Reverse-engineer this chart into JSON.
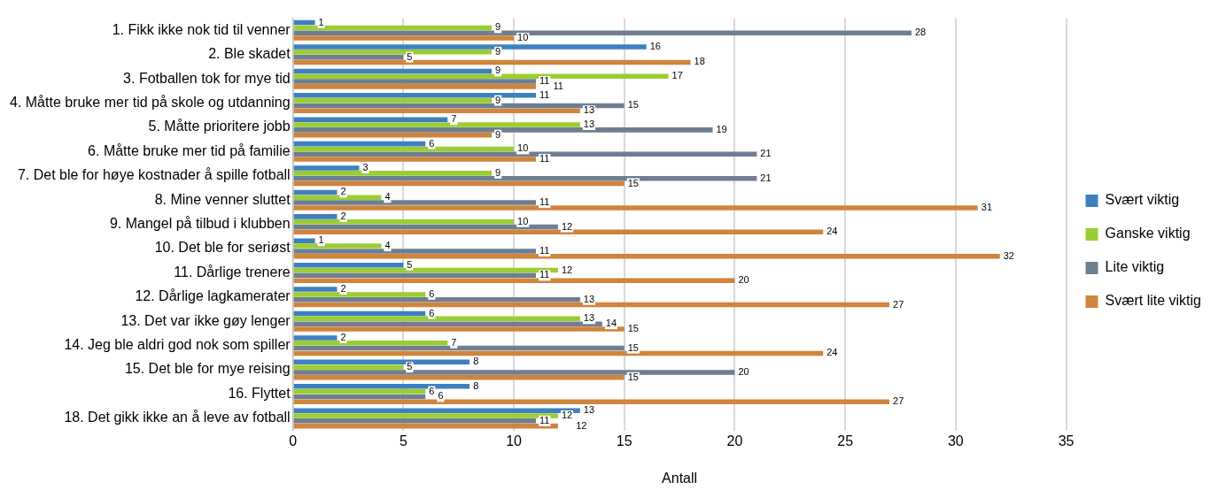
{
  "chart_data": {
    "type": "bar",
    "orientation": "horizontal",
    "xlabel": "Antall",
    "categories": [
      "1. Fikk ikke nok tid til venner",
      "2. Ble skadet",
      "3. Fotballen tok for mye tid",
      "4. Måtte bruke mer tid på skole og utdanning",
      "5. Måtte prioritere jobb",
      "6. Måtte bruke mer tid på familie",
      "7. Det ble for høye kostnader å spille fotball",
      "8. Mine venner sluttet",
      "9. Mangel på tilbud i klubben",
      "10. Det ble for seriøst",
      "11. Dårlige trenere",
      "12. Dårlige lagkamerater",
      "13. Det var ikke gøy lenger",
      "14. Jeg ble aldri god nok som spiller",
      "15. Det ble for mye reising",
      "16. Flyttet",
      "18. Det gikk ikke an å leve av fotball"
    ],
    "series": [
      {
        "name": "Svært viktig",
        "color": "#3f7fbf",
        "values": [
          1,
          16,
          9,
          11,
          7,
          6,
          3,
          2,
          2,
          1,
          5,
          2,
          6,
          2,
          8,
          8,
          13
        ]
      },
      {
        "name": "Ganske viktig",
        "color": "#9acd32",
        "values": [
          9,
          9,
          17,
          9,
          13,
          10,
          9,
          4,
          10,
          4,
          12,
          6,
          13,
          7,
          5,
          6,
          12
        ]
      },
      {
        "name": "Lite viktig",
        "color": "#6f7f91",
        "values": [
          28,
          5,
          11,
          15,
          19,
          21,
          21,
          11,
          12,
          11,
          11,
          13,
          14,
          15,
          20,
          6,
          11
        ]
      },
      {
        "name": "Svært lite viktig",
        "color": "#d0843c",
        "values": [
          10,
          18,
          11,
          13,
          9,
          11,
          15,
          31,
          24,
          32,
          20,
          27,
          15,
          24,
          15,
          27,
          12
        ]
      }
    ],
    "xlim": [
      0,
      35
    ],
    "xticks": [
      0,
      5,
      10,
      15,
      20,
      25,
      30,
      35
    ],
    "grid": "x",
    "legend": "right",
    "data_labels": true
  }
}
